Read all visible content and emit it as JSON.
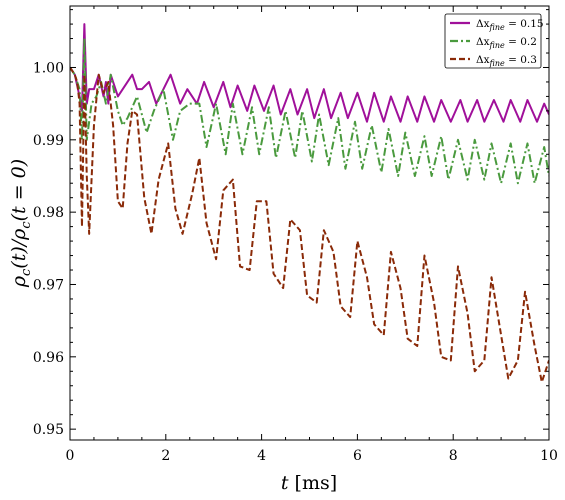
{
  "chart_data": {
    "type": "line",
    "title": "",
    "xlabel": "t [ms]",
    "ylabel": "ρc(t)/ρc(t=0)",
    "xlim": [
      0,
      10
    ],
    "ylim": [
      0.9485,
      1.0085
    ],
    "x_ticks": [
      0,
      2,
      4,
      6,
      8,
      10
    ],
    "x_tick_labels": [
      "0",
      "2",
      "4",
      "6",
      "8",
      "10"
    ],
    "y_ticks": [
      0.95,
      0.96,
      0.97,
      0.98,
      0.99,
      1.0
    ],
    "y_tick_labels": [
      "0.95",
      "0.96",
      "0.97",
      "0.98",
      "0.99",
      "1.00"
    ],
    "grid": false,
    "legend_position": "top-right",
    "series": [
      {
        "name": "Δx_fine = 0.15",
        "color": "#a0109a",
        "dash": "solid",
        "x": [
          0,
          0.1,
          0.2,
          0.25,
          0.3,
          0.35,
          0.4,
          0.5,
          0.6,
          0.7,
          0.75,
          0.8,
          0.85,
          0.9,
          1.0,
          1.1,
          1.2,
          1.3,
          1.4,
          1.5,
          1.65,
          1.8,
          1.95,
          2.1,
          2.3,
          2.45,
          2.65,
          2.8,
          3.0,
          3.2,
          3.35,
          3.5,
          3.7,
          3.85,
          4.05,
          4.25,
          4.4,
          4.6,
          4.75,
          4.95,
          5.1,
          5.3,
          5.45,
          5.65,
          5.8,
          6.0,
          6.2,
          6.35,
          6.55,
          6.7,
          6.9,
          7.05,
          7.25,
          7.4,
          7.6,
          7.75,
          7.95,
          8.15,
          8.3,
          8.5,
          8.65,
          8.85,
          9.05,
          9.2,
          9.4,
          9.55,
          9.75,
          9.9,
          10.0
        ],
        "y": [
          1.0,
          0.999,
          0.996,
          0.994,
          1.006,
          0.995,
          0.997,
          0.997,
          0.999,
          0.996,
          0.998,
          0.995,
          0.999,
          0.998,
          0.996,
          0.997,
          0.998,
          0.999,
          0.997,
          0.997,
          0.998,
          0.995,
          0.997,
          0.999,
          0.995,
          0.997,
          0.995,
          0.998,
          0.9945,
          0.998,
          0.9945,
          0.9975,
          0.994,
          0.9975,
          0.994,
          0.9975,
          0.9935,
          0.997,
          0.9935,
          0.997,
          0.993,
          0.997,
          0.993,
          0.9965,
          0.993,
          0.9965,
          0.9925,
          0.9965,
          0.9925,
          0.996,
          0.9925,
          0.996,
          0.9925,
          0.996,
          0.9925,
          0.9955,
          0.9925,
          0.9955,
          0.9925,
          0.9955,
          0.9925,
          0.9955,
          0.9925,
          0.9955,
          0.9925,
          0.9955,
          0.9925,
          0.995,
          0.9935
        ]
      },
      {
        "name": "Δx_fine = 0.2",
        "color": "#4a9a3e",
        "dash": "dashdot",
        "x": [
          0,
          0.1,
          0.2,
          0.25,
          0.3,
          0.35,
          0.45,
          0.55,
          0.65,
          0.75,
          0.85,
          1.0,
          1.1,
          1.2,
          1.4,
          1.6,
          1.75,
          1.95,
          2.15,
          2.3,
          2.5,
          2.7,
          2.85,
          3.05,
          3.25,
          3.4,
          3.6,
          3.8,
          3.95,
          4.15,
          4.3,
          4.5,
          4.7,
          4.85,
          5.05,
          5.2,
          5.4,
          5.6,
          5.75,
          5.95,
          6.1,
          6.3,
          6.5,
          6.65,
          6.85,
          7.0,
          7.2,
          7.4,
          7.55,
          7.75,
          7.9,
          8.1,
          8.3,
          8.45,
          8.65,
          8.8,
          9.0,
          9.2,
          9.35,
          9.55,
          9.7,
          9.9,
          10.0
        ],
        "y": [
          1.0,
          0.999,
          0.997,
          0.99,
          1.004,
          0.99,
          0.995,
          0.996,
          0.998,
          0.995,
          0.999,
          0.994,
          0.992,
          0.993,
          0.996,
          0.991,
          0.994,
          0.997,
          0.99,
          0.994,
          0.995,
          0.995,
          0.989,
          0.995,
          0.988,
          0.995,
          0.988,
          0.9945,
          0.988,
          0.9945,
          0.9875,
          0.994,
          0.9875,
          0.994,
          0.987,
          0.9935,
          0.9865,
          0.993,
          0.986,
          0.9925,
          0.986,
          0.992,
          0.9855,
          0.9915,
          0.985,
          0.991,
          0.985,
          0.9905,
          0.985,
          0.9905,
          0.9845,
          0.99,
          0.9845,
          0.99,
          0.9845,
          0.9895,
          0.984,
          0.9895,
          0.984,
          0.9895,
          0.984,
          0.989,
          0.985
        ]
      },
      {
        "name": "Δx_fine = 0.3",
        "color": "#8a2a08",
        "dash": "dashed",
        "x": [
          0,
          0.1,
          0.15,
          0.2,
          0.25,
          0.3,
          0.35,
          0.4,
          0.5,
          0.6,
          0.7,
          0.8,
          0.9,
          1.0,
          1.1,
          1.2,
          1.3,
          1.4,
          1.55,
          1.7,
          1.85,
          2.05,
          2.2,
          2.35,
          2.55,
          2.7,
          2.85,
          3.05,
          3.2,
          3.4,
          3.55,
          3.75,
          3.9,
          4.1,
          4.25,
          4.45,
          4.6,
          4.8,
          4.95,
          5.15,
          5.3,
          5.5,
          5.65,
          5.85,
          6.0,
          6.2,
          6.35,
          6.55,
          6.7,
          6.9,
          7.05,
          7.25,
          7.4,
          7.6,
          7.75,
          7.95,
          8.1,
          8.3,
          8.45,
          8.65,
          8.8,
          9.0,
          9.15,
          9.35,
          9.5,
          9.7,
          9.85,
          10.0
        ],
        "y": [
          1.0,
          0.999,
          0.998,
          0.995,
          0.978,
          0.999,
          0.985,
          0.977,
          0.992,
          0.999,
          0.9965,
          0.998,
          0.992,
          0.9815,
          0.9805,
          0.9895,
          0.994,
          0.9935,
          0.982,
          0.977,
          0.9845,
          0.9895,
          0.9805,
          0.977,
          0.9825,
          0.9875,
          0.9785,
          0.9735,
          0.983,
          0.9845,
          0.9725,
          0.972,
          0.9815,
          0.9815,
          0.9715,
          0.9695,
          0.979,
          0.9775,
          0.9685,
          0.9675,
          0.9775,
          0.9745,
          0.967,
          0.9655,
          0.976,
          0.971,
          0.9645,
          0.963,
          0.9745,
          0.9695,
          0.9625,
          0.9615,
          0.974,
          0.9675,
          0.96,
          0.9595,
          0.9725,
          0.966,
          0.958,
          0.9595,
          0.971,
          0.963,
          0.957,
          0.9595,
          0.969,
          0.9615,
          0.9565,
          0.9595
        ]
      }
    ]
  },
  "legend": {
    "entries": [
      {
        "prefix": "Δx",
        "sub": "fine",
        "value": " = 0.15"
      },
      {
        "prefix": "Δx",
        "sub": "fine",
        "value": " = 0.2"
      },
      {
        "prefix": "Δx",
        "sub": "fine",
        "value": " = 0.3"
      }
    ]
  },
  "axes": {
    "xlabel": {
      "var": "t",
      "unit": " [ms]"
    },
    "ylabel": {
      "rho": "ρ",
      "sub": "c",
      "num_arg": "(t)/",
      "rho2": "ρ",
      "sub2": "c",
      "den_arg": "(t = 0)"
    }
  }
}
